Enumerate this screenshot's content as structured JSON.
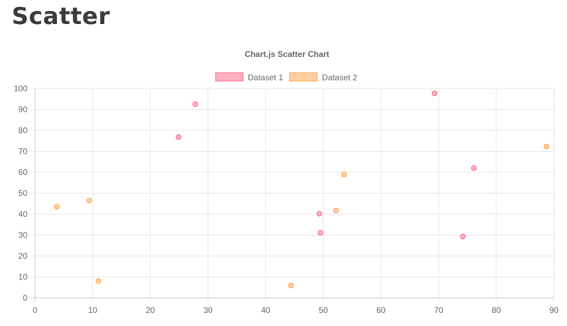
{
  "page": {
    "title": "Scatter"
  },
  "chart_data": {
    "type": "scatter",
    "title": "Chart.js Scatter Chart",
    "legend_position": "top",
    "grid": true,
    "xlim": [
      0,
      90
    ],
    "ylim": [
      0,
      100
    ],
    "x_ticks": [
      "0",
      "10",
      "20",
      "30",
      "40",
      "50",
      "60",
      "70",
      "80",
      "90"
    ],
    "y_ticks": [
      "0",
      "10",
      "20",
      "30",
      "40",
      "50",
      "60",
      "70",
      "80",
      "90",
      "100"
    ],
    "series": [
      {
        "name": "Dataset 1",
        "color": "#ff6384",
        "fill": "#ffb1c1",
        "points": [
          {
            "x": 24.9,
            "y": 76.8
          },
          {
            "x": 27.8,
            "y": 92.5
          },
          {
            "x": 49.3,
            "y": 40.2
          },
          {
            "x": 49.5,
            "y": 31.1
          },
          {
            "x": 69.3,
            "y": 97.7
          },
          {
            "x": 74.2,
            "y": 29.3
          },
          {
            "x": 76.1,
            "y": 62.0
          }
        ]
      },
      {
        "name": "Dataset 2",
        "color": "#ff9f40",
        "fill": "#ffcf9f",
        "points": [
          {
            "x": 3.8,
            "y": 43.5
          },
          {
            "x": 9.4,
            "y": 46.5
          },
          {
            "x": 11.0,
            "y": 8.0
          },
          {
            "x": 44.4,
            "y": 5.9
          },
          {
            "x": 52.2,
            "y": 41.7
          },
          {
            "x": 53.6,
            "y": 58.9
          },
          {
            "x": 88.7,
            "y": 72.3
          }
        ]
      }
    ]
  }
}
